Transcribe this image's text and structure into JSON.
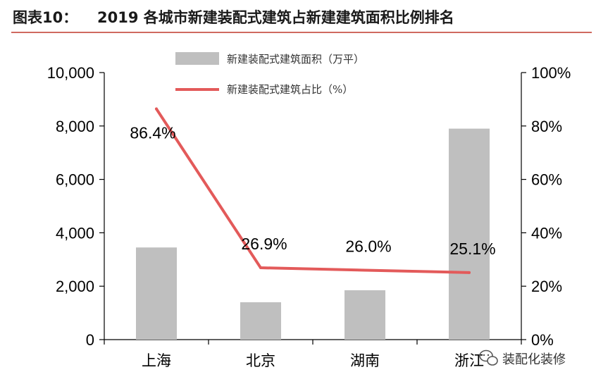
{
  "header": {
    "label": "图表10：",
    "title": "2019 各城市新建装配式建筑占新建建筑面积比例排名",
    "rule_color": "#c0392b"
  },
  "watermark": {
    "text": "装配化装修",
    "icon": "wechat-icon"
  },
  "chart_data": {
    "type": "bar",
    "categories": [
      "上海",
      "北京",
      "湖南",
      "浙江"
    ],
    "series": [
      {
        "name": "新建装配式建筑面积（万平）",
        "type": "bar",
        "axis": "left",
        "color": "#bfbfbf",
        "values": [
          3450,
          1400,
          1850,
          7900
        ]
      },
      {
        "name": "新建装配式建筑占比（%）",
        "type": "line",
        "axis": "right",
        "color": "#e35a5a",
        "values": [
          86.4,
          26.9,
          26.0,
          25.1
        ],
        "data_labels": [
          "86.4%",
          "26.9%",
          "26.0%",
          "25.1%"
        ]
      }
    ],
    "y_left": {
      "ylim": [
        0,
        10000
      ],
      "ticks": [
        "0",
        "2,000",
        "4,000",
        "6,000",
        "8,000",
        "10,000"
      ]
    },
    "y_right": {
      "ylim": [
        0,
        100
      ],
      "ticks": [
        "0%",
        "20%",
        "40%",
        "60%",
        "80%",
        "100%"
      ]
    },
    "grid": false,
    "legend_position": "top-center"
  }
}
